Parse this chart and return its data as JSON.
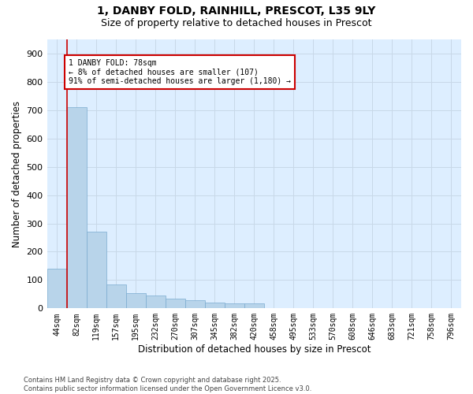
{
  "title_line1": "1, DANBY FOLD, RAINHILL, PRESCOT, L35 9LY",
  "title_line2": "Size of property relative to detached houses in Prescot",
  "xlabel": "Distribution of detached houses by size in Prescot",
  "ylabel": "Number of detached properties",
  "categories": [
    "44sqm",
    "82sqm",
    "119sqm",
    "157sqm",
    "195sqm",
    "232sqm",
    "270sqm",
    "307sqm",
    "345sqm",
    "382sqm",
    "420sqm",
    "458sqm",
    "495sqm",
    "533sqm",
    "570sqm",
    "608sqm",
    "646sqm",
    "683sqm",
    "721sqm",
    "758sqm",
    "796sqm"
  ],
  "values": [
    140,
    710,
    270,
    85,
    55,
    45,
    35,
    30,
    20,
    18,
    18,
    0,
    0,
    0,
    0,
    0,
    0,
    0,
    0,
    0,
    0
  ],
  "bar_color": "#b8d4ea",
  "bar_edgecolor": "#7aabcf",
  "annotation_text_line1": "1 DANBY FOLD: 78sqm",
  "annotation_text_line2": "← 8% of detached houses are smaller (107)",
  "annotation_text_line3": "91% of semi-detached houses are larger (1,180) →",
  "annotation_box_facecolor": "#ffffff",
  "annotation_box_edgecolor": "#cc0000",
  "vline_color": "#cc0000",
  "ylim": [
    0,
    950
  ],
  "yticks": [
    0,
    100,
    200,
    300,
    400,
    500,
    600,
    700,
    800,
    900
  ],
  "grid_color": "#c8d8e8",
  "bg_color": "#ddeeff",
  "fig_bg_color": "#ffffff",
  "footnote_line1": "Contains HM Land Registry data © Crown copyright and database right 2025.",
  "footnote_line2": "Contains public sector information licensed under the Open Government Licence v3.0."
}
